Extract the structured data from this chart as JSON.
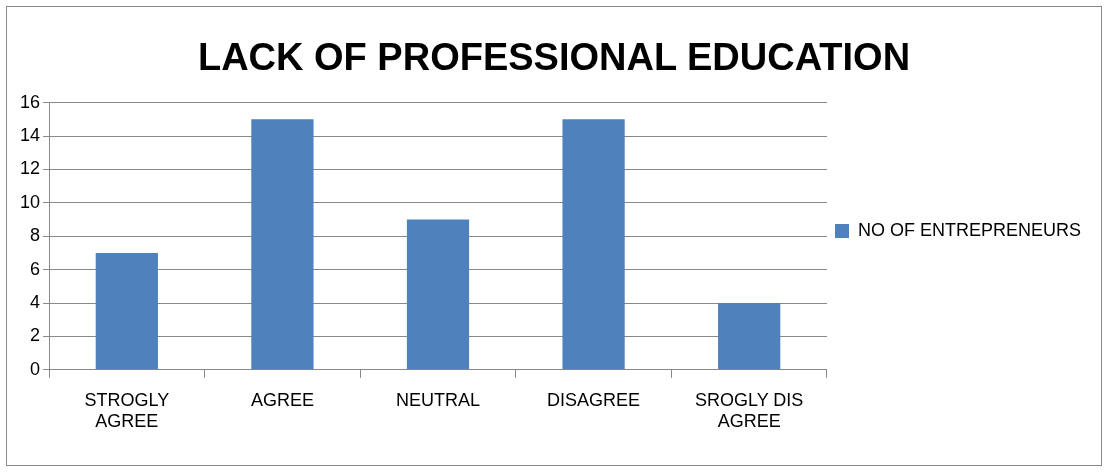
{
  "chart_data": {
    "type": "bar",
    "title": "LACK OF PROFESSIONAL EDUCATION",
    "categories": [
      "STROGLY AGREE",
      "AGREE",
      "NEUTRAL",
      "DISAGREE",
      "SROGLY DIS AGREE"
    ],
    "series": [
      {
        "name": "NO OF ENTREPRENEURS",
        "color": "#4f81bd",
        "values": [
          7,
          15,
          9,
          15,
          4
        ]
      }
    ],
    "ylim": [
      0,
      16
    ],
    "yticks": [
      0,
      2,
      4,
      6,
      8,
      10,
      12,
      14,
      16
    ],
    "grid": "y",
    "legend": "right"
  }
}
